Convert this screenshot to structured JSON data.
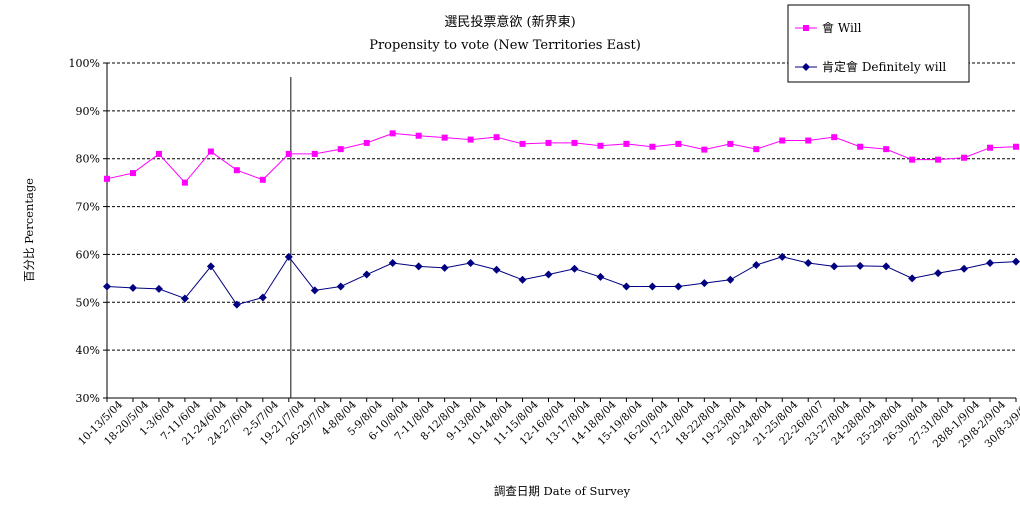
{
  "chart_data": {
    "type": "line",
    "title": "選民投票意欲 (新界東)",
    "subtitle": "Propensity to vote (New Territories East)",
    "xlabel": "調查日期 Date of Survey",
    "ylabel": "百分比 Percentage",
    "ylim": [
      30,
      100
    ],
    "yticks": [
      "30%",
      "40%",
      "50%",
      "60%",
      "70%",
      "80%",
      "90%",
      "100%"
    ],
    "grid": "horizontal dashed",
    "legend_position": "top-right",
    "categories": [
      "10-13/5/04",
      "18-20/5/04",
      "1-3/6/04",
      "7-11/6/04",
      "21-24/6/04",
      "24-27/6/04",
      "2-5/7/04",
      "19-21/7/04",
      "26-29/7/04",
      "4-8/8/04",
      "5-9/8/04",
      "6-10/8/04",
      "7-11/8/04",
      "8-12/8/04",
      "9-13/8/04",
      "10-14/8/04",
      "11-15/8/04",
      "12-16/8/04",
      "13-17/8/04",
      "14-18/8/04",
      "15-19/8/04",
      "16-20/8/04",
      "17-21/8/04",
      "18-22/8/04",
      "19-23/8/04",
      "20-24/8/04",
      "21-25/8/04",
      "22-26/8/07",
      "23-27/8/04",
      "24-28/8/04",
      "25-29/8/04",
      "26-30/8/04",
      "27-31/8/04",
      "28/8-1/9/04",
      "29/8-2/9/04",
      "30/8-3/9/04"
    ],
    "series": [
      {
        "name": "會 Will",
        "color": "#ff00ff",
        "marker": "square",
        "values": [
          75.8,
          77.0,
          81.0,
          75.0,
          81.5,
          77.6,
          75.6,
          81.0,
          81.0,
          82.0,
          83.3,
          85.3,
          84.8,
          84.4,
          84.0,
          84.5,
          83.1,
          83.3,
          83.3,
          82.7,
          83.1,
          82.5,
          83.1,
          81.9,
          83.1,
          82.0,
          83.8,
          83.8,
          84.5,
          82.5,
          82.0,
          79.8,
          79.8,
          80.2,
          82.3,
          82.5
        ]
      },
      {
        "name": "肯定會 Definitely will",
        "color": "#000080",
        "marker": "diamond",
        "values": [
          53.3,
          53.0,
          52.8,
          50.8,
          57.5,
          49.5,
          51.0,
          59.5,
          52.5,
          53.3,
          55.8,
          58.2,
          57.5,
          57.2,
          58.2,
          56.8,
          54.7,
          55.8,
          57.0,
          55.3,
          53.3,
          53.3,
          53.3,
          54.0,
          54.7,
          57.8,
          59.5,
          58.2,
          57.5,
          57.6,
          57.5,
          55.0,
          56.1,
          57.0,
          58.2,
          58.5
        ]
      }
    ],
    "annotations": [
      {
        "type": "vertical-line",
        "after_category": "19-21/7/04"
      }
    ]
  }
}
